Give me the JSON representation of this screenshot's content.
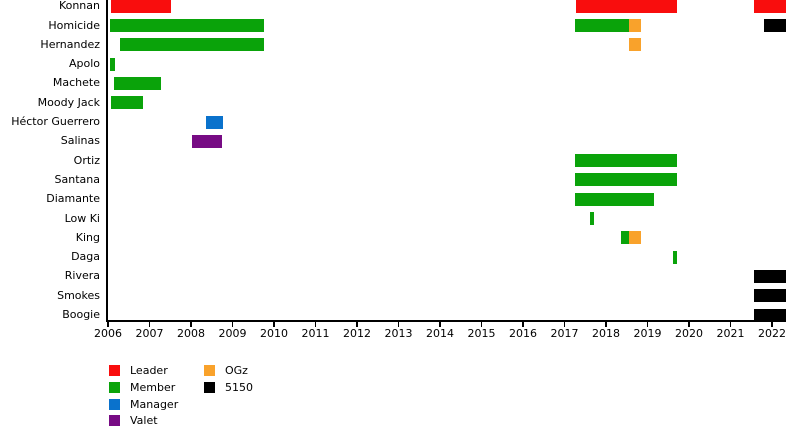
{
  "chart_data": {
    "type": "bar",
    "subtype": "gantt-timeline",
    "title": "",
    "xlabel": "",
    "ylabel": "",
    "grid": false,
    "legend_position": "bottom-left",
    "x_axis": {
      "min": 2006,
      "max": 2022.35,
      "ticks": [
        2006,
        2007,
        2008,
        2009,
        2010,
        2011,
        2012,
        2013,
        2014,
        2015,
        2016,
        2017,
        2018,
        2019,
        2020,
        2021,
        2022
      ]
    },
    "rows": [
      {
        "label": "Konnan",
        "bars": [
          {
            "start": 2006.07,
            "end": 2007.52,
            "role": "Leader"
          },
          {
            "start": 2017.28,
            "end": 2019.71,
            "role": "Leader"
          },
          {
            "start": 2021.57,
            "end": 2022.33,
            "role": "Leader"
          }
        ]
      },
      {
        "label": "Homicide",
        "bars": [
          {
            "start": 2006.05,
            "end": 2009.76,
            "role": "Member"
          },
          {
            "start": 2017.25,
            "end": 2018.55,
            "role": "Member"
          },
          {
            "start": 2018.55,
            "end": 2018.84,
            "role": "OGz"
          },
          {
            "start": 2021.81,
            "end": 2022.33,
            "role": "5150"
          }
        ]
      },
      {
        "label": "Hernandez",
        "bars": [
          {
            "start": 2006.29,
            "end": 2009.76,
            "role": "Member"
          },
          {
            "start": 2018.55,
            "end": 2018.84,
            "role": "OGz"
          }
        ]
      },
      {
        "label": "Apolo",
        "bars": [
          {
            "start": 2006.05,
            "end": 2006.17,
            "role": "Member"
          }
        ]
      },
      {
        "label": "Machete",
        "bars": [
          {
            "start": 2006.14,
            "end": 2007.28,
            "role": "Member"
          }
        ]
      },
      {
        "label": "Moody Jack",
        "bars": [
          {
            "start": 2006.07,
            "end": 2006.84,
            "role": "Member"
          }
        ]
      },
      {
        "label": "Héctor Guerrero",
        "bars": [
          {
            "start": 2008.35,
            "end": 2008.78,
            "role": "Manager"
          }
        ]
      },
      {
        "label": "Salinas",
        "bars": [
          {
            "start": 2008.03,
            "end": 2008.75,
            "role": "Valet"
          }
        ]
      },
      {
        "label": "Ortiz",
        "bars": [
          {
            "start": 2017.25,
            "end": 2019.71,
            "role": "Member"
          }
        ]
      },
      {
        "label": "Santana",
        "bars": [
          {
            "start": 2017.25,
            "end": 2019.71,
            "role": "Member"
          }
        ]
      },
      {
        "label": "Diamante",
        "bars": [
          {
            "start": 2017.25,
            "end": 2019.16,
            "role": "Member"
          }
        ]
      },
      {
        "label": "Low Ki",
        "bars": [
          {
            "start": 2017.61,
            "end": 2017.7,
            "role": "Member"
          }
        ]
      },
      {
        "label": "King",
        "bars": [
          {
            "start": 2018.36,
            "end": 2018.55,
            "role": "Member"
          },
          {
            "start": 2018.55,
            "end": 2018.84,
            "role": "OGz"
          }
        ]
      },
      {
        "label": "Daga",
        "bars": [
          {
            "start": 2019.61,
            "end": 2019.71,
            "role": "Member"
          }
        ]
      },
      {
        "label": "Rivera",
        "bars": [
          {
            "start": 2021.57,
            "end": 2022.33,
            "role": "5150"
          }
        ]
      },
      {
        "label": "Smokes",
        "bars": [
          {
            "start": 2021.57,
            "end": 2022.33,
            "role": "5150"
          }
        ]
      },
      {
        "label": "Boogie",
        "bars": [
          {
            "start": 2021.57,
            "end": 2022.33,
            "role": "5150"
          }
        ]
      }
    ],
    "legend": {
      "columns": [
        [
          "Leader",
          "Member",
          "Manager",
          "Valet"
        ],
        [
          "OGz",
          "5150"
        ]
      ]
    },
    "colors": {
      "Leader": "#f90d0d",
      "Member": "#0aa30a",
      "Manager": "#0a72cc",
      "Valet": "#770b84",
      "OGz": "#f9a22b",
      "5150": "#000000"
    }
  }
}
